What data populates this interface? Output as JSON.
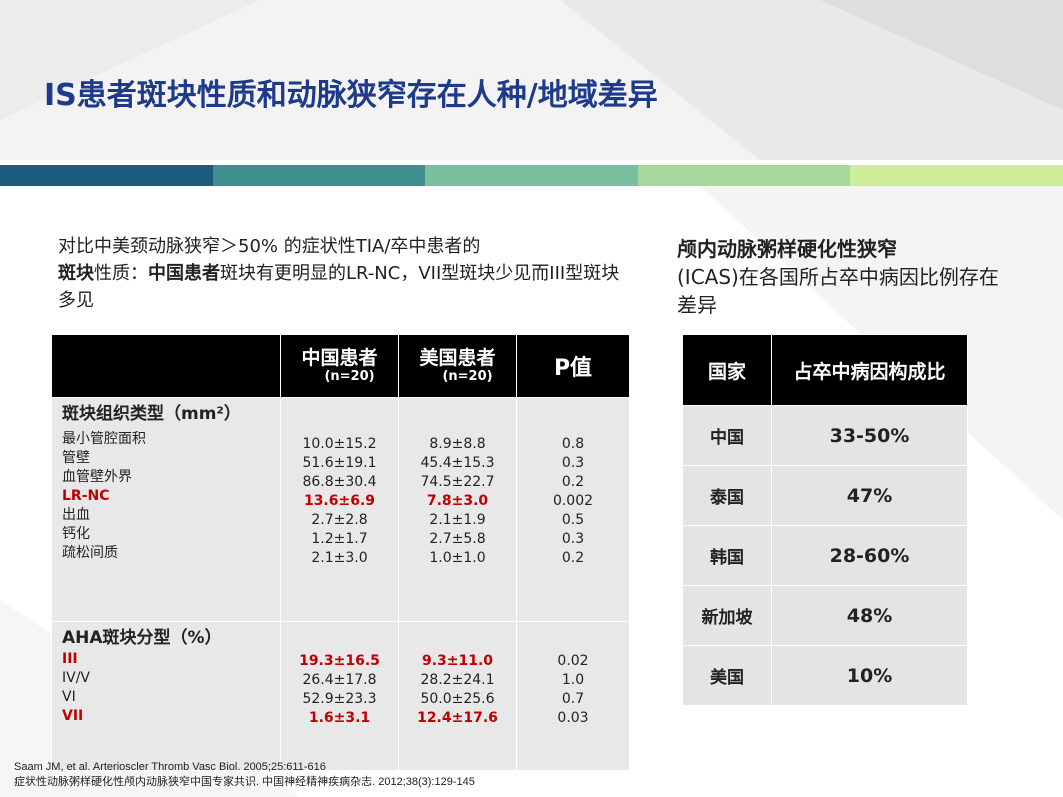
{
  "slide_title": "IS患者斑块性质和动脉狭窄存在人种/地域差异",
  "band_colors": [
    "#1c5a7e",
    "#3f8f8f",
    "#77bf9e",
    "#a6d79c",
    "#cfee9a"
  ],
  "intro": {
    "line1": "对比中美颈动脉狭窄＞50% 的症状性TIA/卒中患者的",
    "bold1": "斑块",
    "mid1": "性质：",
    "bold2": "中国患者",
    "rest": "斑块有更明显的LR-NC，VII型斑块少见而III型斑块多见"
  },
  "left_table": {
    "headers": {
      "china": "中国患者",
      "china_n": "(n=20)",
      "usa": "美国患者",
      "usa_n": "(n=20)",
      "p": "P值"
    },
    "block1": {
      "title": "斑块组织类型（mm²）",
      "rows": [
        {
          "label": "最小管腔面积",
          "china": "10.0±15.2",
          "usa": "8.9±8.8",
          "p": "0.8"
        },
        {
          "label": "管壁",
          "china": "51.6±19.1",
          "usa": "45.4±15.3",
          "p": "0.3"
        },
        {
          "label": "血管壁外界",
          "china": "86.8±30.4",
          "usa": "74.5±22.7",
          "p": "0.2"
        },
        {
          "label": "LR-NC",
          "china": "13.6±6.9",
          "usa": "7.8±3.0",
          "p": "0.002"
        },
        {
          "label": "出血",
          "china": "2.7±2.8",
          "usa": "2.1±1.9",
          "p": "0.5"
        },
        {
          "label": "钙化",
          "china": "1.2±1.7",
          "usa": "2.7±5.8",
          "p": "0.3"
        },
        {
          "label": "疏松间质",
          "china": "2.1±3.0",
          "usa": "1.0±1.0",
          "p": "0.2"
        }
      ]
    },
    "block2": {
      "title": "AHA斑块分型（%）",
      "rows": [
        {
          "label": "III",
          "china": "19.3±16.5",
          "usa": "9.3±11.0",
          "p": "0.02"
        },
        {
          "label": "IV/V",
          "china": "26.4±17.8",
          "usa": "28.2±24.1",
          "p": "1.0"
        },
        {
          "label": "VI",
          "china": "52.9±23.3",
          "usa": "50.0±25.6",
          "p": "0.7"
        },
        {
          "label": "VII",
          "china": "1.6±3.1",
          "usa": "12.4±17.6",
          "p": "0.03"
        }
      ]
    }
  },
  "right_intro": {
    "bold": "颅内动脉粥样硬化性狭窄",
    "rest": "(ICAS)在各国所占卒中病因比例存在差异"
  },
  "right_table": {
    "header_country": "国家",
    "header_ratio": "占卒中病因构成比",
    "rows": [
      {
        "country": "中国",
        "ratio": "33-50%"
      },
      {
        "country": "泰国",
        "ratio": "47%"
      },
      {
        "country": "韩国",
        "ratio": "28-60%"
      },
      {
        "country": "新加坡",
        "ratio": "48%"
      },
      {
        "country": "美国",
        "ratio": "10%"
      }
    ]
  },
  "references": [
    "Saam JM, et al. Arterioscler Thromb Vasc Biol. 2005;25:611-616",
    "症状性动脉粥样硬化性颅内动脉狭窄中国专家共识. 中国神经精神疾病杂志. 2012;38(3):129-145"
  ]
}
